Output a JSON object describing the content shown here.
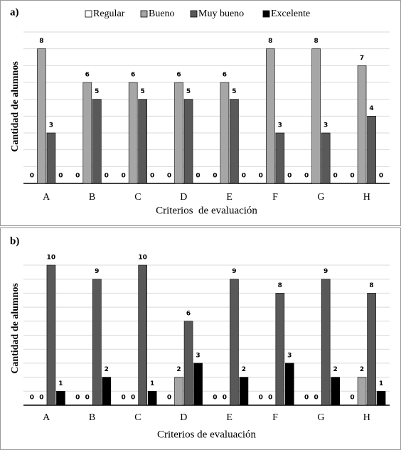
{
  "chart_data": [
    {
      "type": "bar",
      "panel": "a)",
      "x_label": "Criterios  de evaluación",
      "y_label": "Cantidad de alumnos",
      "categories": [
        "A",
        "B",
        "C",
        "D",
        "E",
        "F",
        "G",
        "H"
      ],
      "series": [
        {
          "name": "Regular",
          "color": "#ffffff",
          "values": [
            0,
            0,
            0,
            0,
            0,
            0,
            0,
            0
          ]
        },
        {
          "name": "Bueno",
          "color": "#a6a6a6",
          "values": [
            8,
            6,
            6,
            6,
            6,
            8,
            8,
            7
          ]
        },
        {
          "name": "Muy bueno",
          "color": "#595959",
          "values": [
            3,
            5,
            5,
            5,
            5,
            3,
            3,
            4
          ]
        },
        {
          "name": "Excelente",
          "color": "#000000",
          "values": [
            0,
            0,
            0,
            0,
            0,
            0,
            0,
            0
          ]
        }
      ],
      "ylim": [
        0,
        9
      ],
      "yticks": [
        0,
        1,
        2,
        3,
        4,
        5,
        6,
        7,
        8,
        9
      ],
      "grid": true,
      "legend": "top"
    },
    {
      "type": "bar",
      "panel": "b)",
      "x_label": "Criterios de evaluación",
      "y_label": "Cantidad de alumnos",
      "categories": [
        "A",
        "B",
        "C",
        "D",
        "E",
        "F",
        "G",
        "H"
      ],
      "series": [
        {
          "name": "Regular",
          "color": "#ffffff",
          "values": [
            0,
            0,
            0,
            0,
            0,
            0,
            0,
            0
          ]
        },
        {
          "name": "Bueno",
          "color": "#a6a6a6",
          "values": [
            0,
            0,
            0,
            2,
            0,
            0,
            0,
            2
          ]
        },
        {
          "name": "Muy bueno",
          "color": "#595959",
          "values": [
            10,
            9,
            10,
            6,
            9,
            8,
            9,
            8
          ]
        },
        {
          "name": "Excelente",
          "color": "#000000",
          "values": [
            1,
            2,
            1,
            3,
            2,
            3,
            2,
            1
          ]
        }
      ],
      "ylim": [
        0,
        10
      ],
      "yticks": [
        0,
        1,
        2,
        3,
        4,
        5,
        6,
        7,
        8,
        9,
        10
      ],
      "grid": true
    }
  ]
}
